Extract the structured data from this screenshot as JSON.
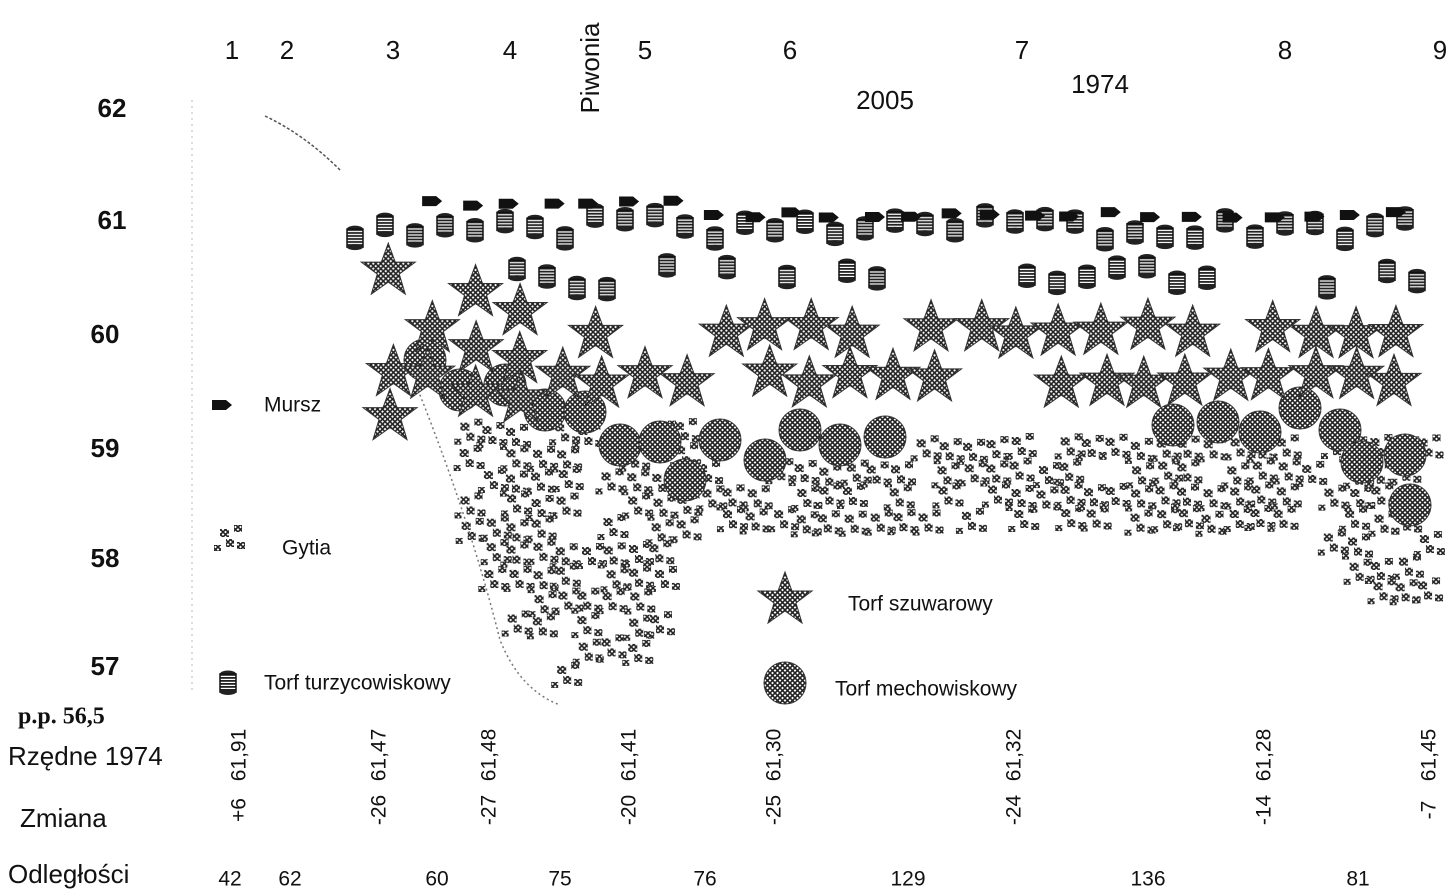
{
  "profile_numbers": [
    "1",
    "2",
    "3",
    "4",
    "5",
    "6",
    "7",
    "8",
    "9"
  ],
  "place_name": "Piwonia",
  "years": [
    "2005",
    "1974"
  ],
  "y_labels": [
    "62",
    "61",
    "60",
    "59",
    "58",
    "57"
  ],
  "base_label": "p.p. 56,5",
  "row_labels": [
    "Rzędne 1974",
    "Zmiana",
    "Odległości"
  ],
  "elevations_1974": [
    "61,91",
    "61,47",
    "61,48",
    "61,41",
    "61,30",
    "61,32",
    "61,28",
    "61,45"
  ],
  "changes": [
    "+6",
    "-26",
    "-27",
    "-20",
    "-25",
    "-24",
    "-14",
    "-7"
  ],
  "distances": [
    "42",
    "62",
    "60",
    "75",
    "76",
    "129",
    "136",
    "81"
  ],
  "legend": [
    "Mursz",
    "Gytia",
    "Torf turzycowiskowy",
    "Torf szuwarowy",
    "Torf mechowiskowy"
  ]
}
